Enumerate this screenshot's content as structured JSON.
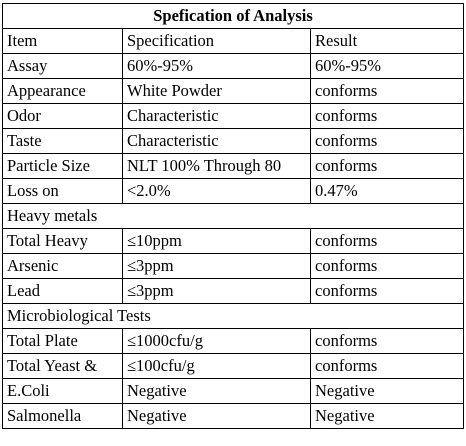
{
  "table": {
    "title": "Spefication of Analysis",
    "header": {
      "item": "Item",
      "specification": "Specification",
      "result": "Result"
    },
    "rows": [
      {
        "item": "Assay",
        "spec": "60%-95%",
        "result": "60%-95%"
      },
      {
        "item": "Appearance",
        "spec": "White Powder",
        "result": "conforms"
      },
      {
        "item": "Odor",
        "spec": "Characteristic",
        "result": "conforms"
      },
      {
        "item": "Taste",
        "spec": "Characteristic",
        "result": "conforms"
      },
      {
        "item": "Particle Size",
        "spec": "NLT 100% Through 80",
        "result": "conforms"
      },
      {
        "item": "Loss on",
        "spec": "<2.0%",
        "result": "0.47%"
      }
    ],
    "section_heavy_metals": "Heavy metals",
    "heavy_rows": [
      {
        "item": "Total Heavy",
        "spec": "≤10ppm",
        "result": "conforms"
      },
      {
        "item": "Arsenic",
        "spec": "≤3ppm",
        "result": "conforms"
      },
      {
        "item": "Lead",
        "spec": "≤3ppm",
        "result": "conforms"
      }
    ],
    "section_micro": "Microbiological Tests",
    "micro_rows": [
      {
        "item": "Total Plate",
        "spec": "≤1000cfu/g",
        "result": "conforms"
      },
      {
        "item": "Total Yeast &",
        "spec": "≤100cfu/g",
        "result": "conforms"
      },
      {
        "item": "E.Coli",
        "spec": "Negative",
        "result": "Negative"
      },
      {
        "item": "Salmonella",
        "spec": "Negative",
        "result": "Negative"
      }
    ]
  }
}
